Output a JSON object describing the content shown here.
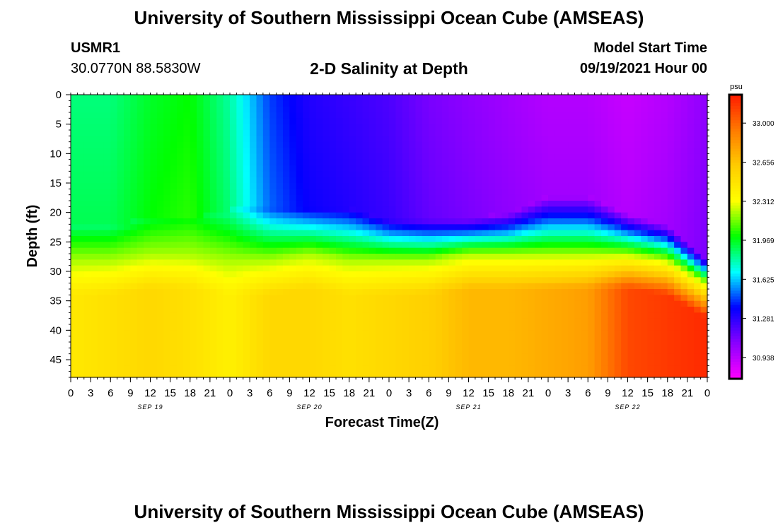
{
  "header": {
    "title": "University of Southern Mississippi Ocean Cube (AMSEAS)",
    "station_id": "USMR1",
    "station_coords": "30.0770N  88.5830W",
    "chart_title": "2-D Salinity at Depth",
    "model_start_label": "Model Start Time",
    "model_start_value": "09/19/2021 Hour 00"
  },
  "footer": {
    "title": "University of Southern Mississippi Ocean Cube (AMSEAS)"
  },
  "colors": {
    "background": "#ffffff",
    "text": "#000000",
    "scale": [
      "#ff00ff",
      "#8a00ff",
      "#0000ff",
      "#00ffff",
      "#00ff00",
      "#ffff00",
      "#ffcc00",
      "#ff7a00",
      "#ff1a00"
    ]
  },
  "chart_data": {
    "type": "heatmap",
    "title": "2-D Salinity at Depth",
    "xlabel": "Forecast Time(Z)",
    "ylabel": "Depth (ft)",
    "x_unit": "hours since model start",
    "xlim": [
      0,
      96
    ],
    "ylim": [
      0,
      48
    ],
    "y_inverted": true,
    "x_ticks": [
      0,
      3,
      6,
      9,
      12,
      15,
      18,
      21,
      24,
      27,
      30,
      33,
      36,
      39,
      42,
      45,
      48,
      51,
      54,
      57,
      60,
      63,
      66,
      69,
      72,
      75,
      78,
      81,
      84,
      87,
      90,
      93,
      96
    ],
    "x_tick_labels": [
      "0",
      "3",
      "6",
      "9",
      "12",
      "15",
      "18",
      "21",
      "0",
      "3",
      "6",
      "9",
      "12",
      "15",
      "18",
      "21",
      "0",
      "3",
      "6",
      "9",
      "12",
      "15",
      "18",
      "21",
      "0",
      "3",
      "6",
      "9",
      "12",
      "15",
      "18",
      "21",
      "0"
    ],
    "date_labels": [
      {
        "hour": 12,
        "text": "SEP 19"
      },
      {
        "hour": 36,
        "text": "SEP 20"
      },
      {
        "hour": 60,
        "text": "SEP 21"
      },
      {
        "hour": 84,
        "text": "SEP 22"
      }
    ],
    "y_ticks": [
      0,
      5,
      10,
      15,
      20,
      25,
      30,
      35,
      40,
      45
    ],
    "y_tick_labels": [
      "0",
      "5",
      "10",
      "15",
      "20",
      "25",
      "30",
      "35",
      "40",
      "45"
    ],
    "colorbar": {
      "unit": "psu",
      "min": 30.75,
      "max": 33.25,
      "ticks": [
        30.938,
        31.281,
        31.625,
        31.969,
        32.312,
        32.656,
        33.0
      ],
      "tick_labels": [
        "30.938",
        "31.281",
        "31.625",
        "31.969",
        "32.312",
        "32.656",
        "33.000"
      ]
    },
    "stations_hours": [
      0,
      6,
      12,
      18,
      24,
      30,
      36,
      42,
      48,
      54,
      60,
      66,
      72,
      78,
      84,
      90,
      96
    ],
    "surface_salinity_psu": [
      31.85,
      31.85,
      31.95,
      32.0,
      31.8,
      31.45,
      31.3,
      31.25,
      31.2,
      31.1,
      31.05,
      31.0,
      30.95,
      30.95,
      30.9,
      30.95,
      31.05
    ],
    "halocline_top_depth_ft": [
      22,
      22,
      21,
      21,
      19.5,
      19,
      19,
      19,
      21,
      21,
      21,
      20,
      17,
      17,
      20,
      22,
      28
    ],
    "halocline_bottom_depth_ft": [
      28,
      28,
      27,
      27,
      28,
      28,
      27,
      28,
      28,
      28,
      27,
      27,
      27,
      27,
      27,
      28,
      32
    ],
    "bottom_salinity_psu": [
      32.45,
      32.5,
      32.55,
      32.5,
      32.4,
      32.55,
      32.55,
      32.5,
      32.55,
      32.6,
      32.7,
      32.7,
      32.75,
      32.8,
      33.1,
      33.15,
      33.2
    ]
  }
}
